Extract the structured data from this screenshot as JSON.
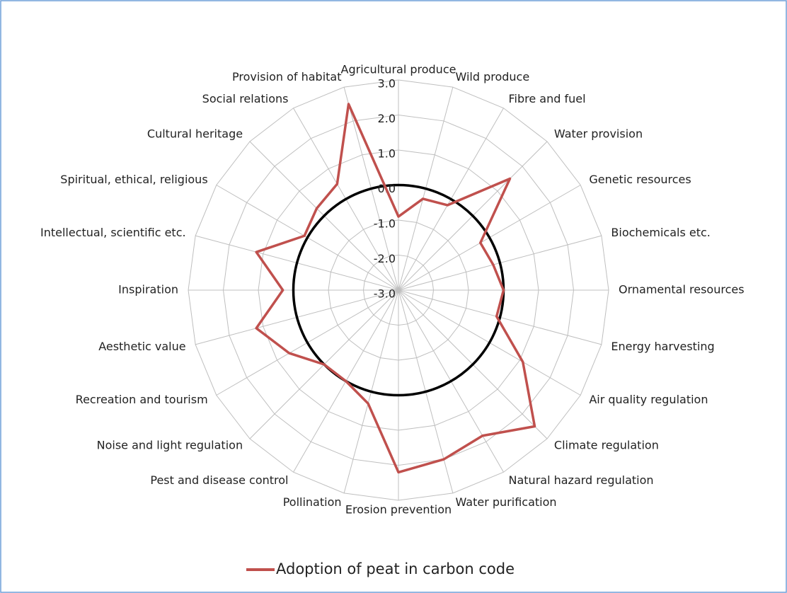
{
  "chart_data": {
    "type": "radar",
    "categories": [
      "Agricultural produce",
      "Wild produce",
      "Fibre and fuel",
      "Water provision",
      "Genetic resources",
      "Biochemicals etc.",
      "Ornamental resources",
      "Energy harvesting",
      "Air quality regulation",
      "Climate regulation",
      "Natural hazard regulation",
      "Water purification",
      "Erosion prevention",
      "Pollination",
      "Pest and disease control",
      "Noise and light regulation",
      "Recreation and tourism",
      "Aesthetic value",
      "Inspiration",
      "Intellectual, scientific etc.",
      "Spiritual, ethical, religious",
      "Cultural heritage",
      "Social relations",
      "Provision of habitat"
    ],
    "series": [
      {
        "name": "Adoption of peat in carbon code",
        "color": "#c0504d",
        "values": [
          -0.9,
          -0.3,
          -0.2,
          1.5,
          -0.3,
          -0.2,
          0.0,
          -0.1,
          1.1,
          2.5,
          1.8,
          2.0,
          2.2,
          0.35,
          0.0,
          0.0,
          0.6,
          1.2,
          0.3,
          1.2,
          0.1,
          0.3,
          0.5,
          2.5
        ]
      }
    ],
    "ylim": [
      -3,
      3
    ],
    "yticks": [
      {
        "value": -3,
        "label": "-3.0"
      },
      {
        "value": -2,
        "label": "-2.0"
      },
      {
        "value": -1,
        "label": "-1.0"
      },
      {
        "value": 0,
        "label": "0.0"
      },
      {
        "value": 1,
        "label": "1.0"
      },
      {
        "value": 2,
        "label": "2.0"
      },
      {
        "value": 3,
        "label": "3.0"
      }
    ],
    "reference_line": 0,
    "grid": true,
    "legend": "bottom"
  }
}
